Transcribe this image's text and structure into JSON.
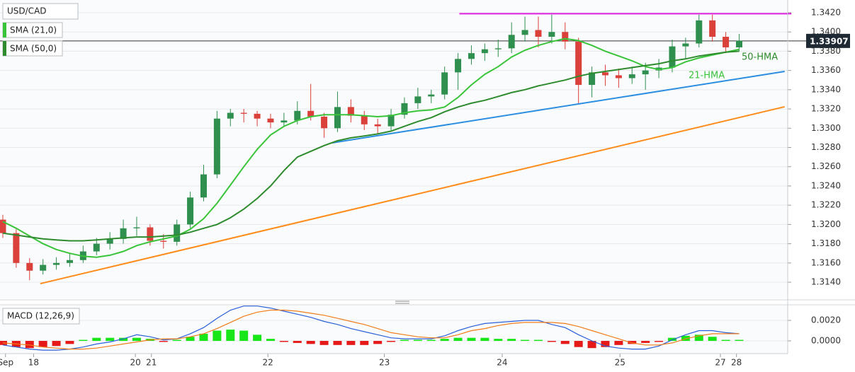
{
  "chart_data": {
    "type": "candlestick",
    "title": "USD/CAD",
    "xlim": [
      -0.21,
      58.52
    ],
    "xticks": [
      {
        "value": 0.2,
        "label": "Sep"
      },
      {
        "value": 2.3,
        "label": "18"
      },
      {
        "value": 9.9,
        "label": "20"
      },
      {
        "value": 11.1,
        "label": "21"
      },
      {
        "value": 19.8,
        "label": "22"
      },
      {
        "value": 28.5,
        "label": "23"
      },
      {
        "value": 37.3,
        "label": "24"
      },
      {
        "value": 46.1,
        "label": "25"
      },
      {
        "value": 53.6,
        "label": "27"
      },
      {
        "value": 54.8,
        "label": "28"
      }
    ],
    "ylim": [
      1.31246,
      1.34332
    ],
    "yticks": [
      {
        "value": 1.314,
        "label": "1.3140"
      },
      {
        "value": 1.316,
        "label": "1.3160"
      },
      {
        "value": 1.318,
        "label": "1.3180"
      },
      {
        "value": 1.32,
        "label": "1.3200"
      },
      {
        "value": 1.322,
        "label": "1.3220"
      },
      {
        "value": 1.324,
        "label": "1.3240"
      },
      {
        "value": 1.326,
        "label": "1.3260"
      },
      {
        "value": 1.328,
        "label": "1.3280"
      },
      {
        "value": 1.33,
        "label": "1.3300"
      },
      {
        "value": 1.332,
        "label": "1.3320"
      },
      {
        "value": 1.334,
        "label": "1.3340"
      },
      {
        "value": 1.336,
        "label": "1.3360"
      },
      {
        "value": 1.338,
        "label": "1.3380"
      },
      {
        "value": 1.34,
        "label": "1.3400"
      },
      {
        "value": 1.342,
        "label": "1.3420"
      }
    ],
    "grid": true,
    "up_color": "#2f8f4f",
    "down_color": "#d9413a",
    "ohlc": [
      [
        1.3205,
        1.321,
        1.3186,
        1.3191
      ],
      [
        1.3191,
        1.3195,
        1.3155,
        1.316
      ],
      [
        1.316,
        1.3165,
        1.3142,
        1.3152
      ],
      [
        1.3152,
        1.3164,
        1.3148,
        1.3158
      ],
      [
        1.3158,
        1.3166,
        1.3153,
        1.316
      ],
      [
        1.316,
        1.317,
        1.3156,
        1.3163
      ],
      [
        1.3163,
        1.3178,
        1.316,
        1.3172
      ],
      [
        1.3172,
        1.3186,
        1.3168,
        1.318
      ],
      [
        1.318,
        1.3192,
        1.3174,
        1.3185
      ],
      [
        1.3185,
        1.3205,
        1.318,
        1.3196
      ],
      [
        1.3196,
        1.3208,
        1.3188,
        1.3197
      ],
      [
        1.3197,
        1.32,
        1.3178,
        1.3183
      ],
      [
        1.3183,
        1.319,
        1.3175,
        1.3182
      ],
      [
        1.3182,
        1.3205,
        1.3178,
        1.32
      ],
      [
        1.32,
        1.3234,
        1.3196,
        1.3228
      ],
      [
        1.3228,
        1.3262,
        1.3224,
        1.3252
      ],
      [
        1.3252,
        1.3318,
        1.3248,
        1.331
      ],
      [
        1.331,
        1.332,
        1.3302,
        1.3316
      ],
      [
        1.3316,
        1.332,
        1.3306,
        1.3315
      ],
      [
        1.3315,
        1.3318,
        1.3302,
        1.331
      ],
      [
        1.331,
        1.3315,
        1.33,
        1.3306
      ],
      [
        1.3306,
        1.3316,
        1.3302,
        1.3308
      ],
      [
        1.3308,
        1.3328,
        1.3304,
        1.3318
      ],
      [
        1.3318,
        1.3346,
        1.3308,
        1.3312
      ],
      [
        1.3312,
        1.3316,
        1.329,
        1.33
      ],
      [
        1.33,
        1.3338,
        1.3296,
        1.3322
      ],
      [
        1.3322,
        1.333,
        1.3306,
        1.3313
      ],
      [
        1.3313,
        1.3318,
        1.3298,
        1.3304
      ],
      [
        1.3304,
        1.331,
        1.3294,
        1.3302
      ],
      [
        1.3302,
        1.332,
        1.3298,
        1.3314
      ],
      [
        1.3314,
        1.3332,
        1.331,
        1.3326
      ],
      [
        1.3326,
        1.3342,
        1.332,
        1.3333
      ],
      [
        1.3333,
        1.334,
        1.3326,
        1.3335
      ],
      [
        1.3335,
        1.3364,
        1.333,
        1.3358
      ],
      [
        1.3358,
        1.3378,
        1.334,
        1.3372
      ],
      [
        1.3372,
        1.3386,
        1.3366,
        1.3378
      ],
      [
        1.3378,
        1.3388,
        1.337,
        1.3382
      ],
      [
        1.3382,
        1.3392,
        1.3374,
        1.3383
      ],
      [
        1.3383,
        1.341,
        1.3378,
        1.3397
      ],
      [
        1.3397,
        1.3416,
        1.339,
        1.3402
      ],
      [
        1.3402,
        1.3416,
        1.3384,
        1.3395
      ],
      [
        1.3395,
        1.3418,
        1.3388,
        1.34
      ],
      [
        1.34,
        1.341,
        1.3382,
        1.339
      ],
      [
        1.339,
        1.3394,
        1.3326,
        1.3345
      ],
      [
        1.3345,
        1.3364,
        1.3332,
        1.3358
      ],
      [
        1.3358,
        1.3366,
        1.3344,
        1.3355
      ],
      [
        1.3355,
        1.3362,
        1.3342,
        1.3352
      ],
      [
        1.3352,
        1.3364,
        1.3346,
        1.3356
      ],
      [
        1.3356,
        1.3368,
        1.334,
        1.336
      ],
      [
        1.336,
        1.3372,
        1.3352,
        1.3363
      ],
      [
        1.3363,
        1.3392,
        1.3358,
        1.3385
      ],
      [
        1.3385,
        1.3394,
        1.3372,
        1.3388
      ],
      [
        1.3388,
        1.3418,
        1.3384,
        1.3412
      ],
      [
        1.3412,
        1.3418,
        1.339,
        1.3395
      ],
      [
        1.3395,
        1.34,
        1.3378,
        1.3384
      ],
      [
        1.3384,
        1.3398,
        1.338,
        1.3391
      ]
    ],
    "series": [
      {
        "name": "SMA (21,0)",
        "color": "#3ac43a",
        "values": [
          1.3203,
          1.3196,
          1.3188,
          1.318,
          1.3174,
          1.317,
          1.3167,
          1.3166,
          1.3168,
          1.3172,
          1.3178,
          1.3182,
          1.3185,
          1.3188,
          1.3195,
          1.3206,
          1.3222,
          1.3241,
          1.326,
          1.3278,
          1.3293,
          1.3302,
          1.3308,
          1.3312,
          1.3314,
          1.3314,
          1.3314,
          1.3313,
          1.3312,
          1.3313,
          1.3316,
          1.3318,
          1.3319,
          1.3322,
          1.3332,
          1.3345,
          1.3356,
          1.3364,
          1.3374,
          1.3381,
          1.3386,
          1.339,
          1.3393,
          1.3391,
          1.3386,
          1.338,
          1.3375,
          1.337,
          1.3364,
          1.3361,
          1.3363,
          1.3369,
          1.3373,
          1.3376,
          1.3379,
          1.3382
        ]
      },
      {
        "name": "SMA (50,0)",
        "color": "#2e8b2e",
        "values": [
          1.3191,
          1.3189,
          1.3187,
          1.3185,
          1.3184,
          1.3183,
          1.3183,
          1.3184,
          1.3185,
          1.3186,
          1.3187,
          1.3187,
          1.3188,
          1.3189,
          1.3192,
          1.3196,
          1.32,
          1.3207,
          1.3216,
          1.3227,
          1.324,
          1.3256,
          1.327,
          1.3276,
          1.3282,
          1.3287,
          1.329,
          1.3292,
          1.3294,
          1.3297,
          1.3302,
          1.3307,
          1.3311,
          1.3317,
          1.3322,
          1.3326,
          1.3329,
          1.3333,
          1.3337,
          1.334,
          1.3344,
          1.3347,
          1.335,
          1.3354,
          1.3357,
          1.3359,
          1.3361,
          1.3363,
          1.3365,
          1.3367,
          1.337,
          1.3372,
          1.3375,
          1.3377,
          1.3379,
          1.338
        ]
      }
    ],
    "last_price": 1.33907,
    "trendlines": [
      {
        "color": "#e020e0",
        "x": [
          34.1,
          58.9
        ],
        "y": [
          1.3419,
          1.3419
        ]
      },
      {
        "color": "#2b8ee0",
        "x": [
          24.6,
          58.4
        ],
        "y": [
          1.32848,
          1.3359
        ]
      },
      {
        "color": "#ff8c1a",
        "x": [
          2.8,
          58.4
        ],
        "y": [
          1.31385,
          1.33223
        ]
      }
    ],
    "annotations": [
      "50-HMA",
      "21-HMA"
    ],
    "macd": {
      "name": "MACD (12,26,9)",
      "ylim": [
        -0.00124,
        0.00345
      ],
      "yticks": [
        {
          "value": 0,
          "label": "0.0000"
        },
        {
          "value": 0.002,
          "label": "0.0020"
        }
      ],
      "macd": {
        "color": "#2a5fd8",
        "values": [
          -0.0004,
          -0.0006,
          -0.0008,
          -0.0009,
          -0.0009,
          -0.0008,
          -0.0006,
          -0.0003,
          -0.0001,
          0.0002,
          0.0006,
          0.0004,
          0.0001,
          0.0002,
          0.0007,
          0.0013,
          0.0022,
          0.003,
          0.0034,
          0.0034,
          0.0032,
          0.0029,
          0.0026,
          0.0023,
          0.0019,
          0.0016,
          0.0012,
          0.0009,
          0.0006,
          0.0003,
          0.0002,
          0.0002,
          0.0002,
          0.0005,
          0.001,
          0.0014,
          0.0017,
          0.0018,
          0.0019,
          0.002,
          0.002,
          0.0016,
          0.0013,
          0.0006,
          0.0,
          -0.0005,
          -0.0007,
          -0.0008,
          -0.0008,
          -0.0005,
          0.0001,
          0.0006,
          0.001,
          0.001,
          0.0008,
          0.0007
        ]
      },
      "signal": {
        "color": "#f07d1a",
        "values": [
          -0.0002,
          -0.0003,
          -0.0004,
          -0.0006,
          -0.0007,
          -0.0008,
          -0.0008,
          -0.0007,
          -0.0005,
          -0.0003,
          -0.0001,
          0.0001,
          0.0002,
          0.0002,
          0.0004,
          0.0007,
          0.0012,
          0.0018,
          0.0024,
          0.0028,
          0.003,
          0.003,
          0.0029,
          0.0027,
          0.0025,
          0.0022,
          0.0019,
          0.0016,
          0.0012,
          0.0008,
          0.0006,
          0.0004,
          0.0003,
          0.0003,
          0.0006,
          0.001,
          0.0012,
          0.0015,
          0.0017,
          0.0018,
          0.0018,
          0.0018,
          0.0017,
          0.0014,
          0.001,
          0.0006,
          0.0002,
          -0.0002,
          -0.0004,
          -0.0004,
          -0.0002,
          0.0002,
          0.0005,
          0.0007,
          0.0007,
          0.0007
        ]
      },
      "histogram": {
        "up_color": "#19e619",
        "down_color": "#e61919",
        "values": [
          -0.0004,
          -0.0006,
          -0.0007,
          -0.0006,
          -0.0005,
          -0.0003,
          0.0001,
          0.0003,
          0.0003,
          0.0003,
          0.0003,
          0.0002,
          -0.0001,
          0.0001,
          0.0004,
          0.0007,
          0.001,
          0.0011,
          0.001,
          0.0006,
          0.0002,
          -0.0001,
          -0.0002,
          -0.0003,
          -0.0004,
          -0.0004,
          -0.0004,
          -0.0004,
          -0.0003,
          -0.0001,
          0.0001,
          0.0001,
          0.0001,
          0.0002,
          0.0003,
          0.0003,
          0.0003,
          0.0002,
          0.0002,
          0.0001,
          0.0001,
          -0.0001,
          -0.0003,
          -0.0006,
          -0.0007,
          -0.0006,
          -0.0004,
          -0.0003,
          -0.0002,
          -0.0001,
          0.0003,
          0.0005,
          0.0006,
          0.0004,
          0.0001,
          0.0001
        ]
      }
    }
  }
}
